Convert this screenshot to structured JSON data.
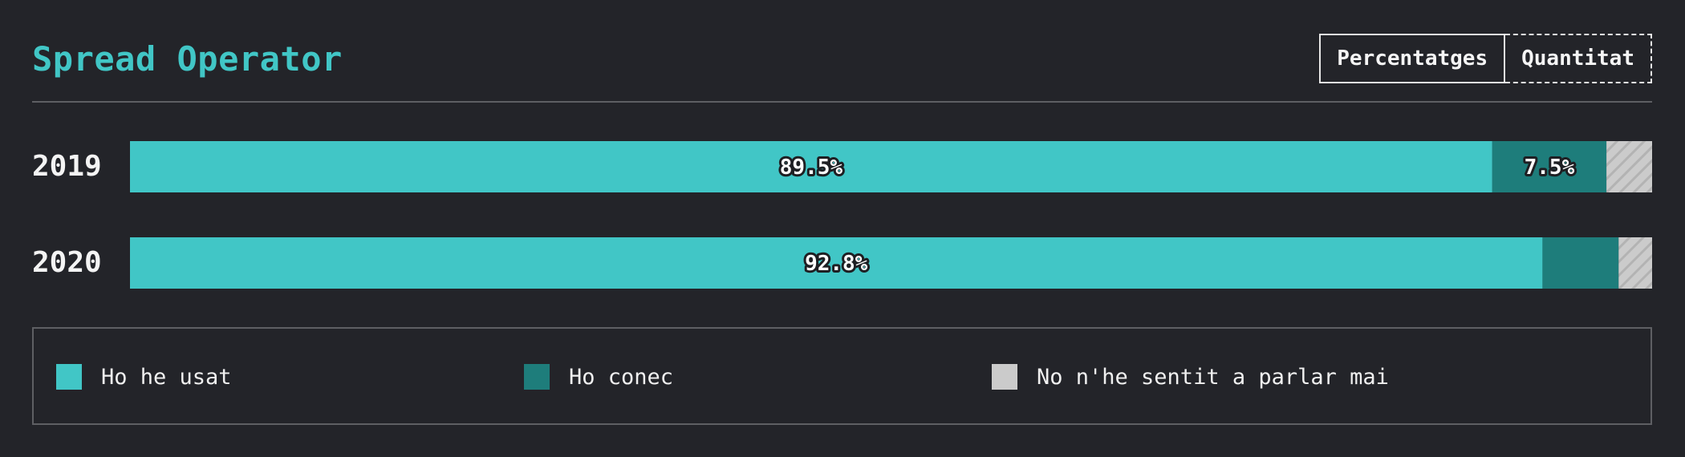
{
  "title": "Spread Operator",
  "toggle": {
    "percent_label": "Percentatges",
    "count_label": "Quantitat",
    "active": "percent"
  },
  "colors": {
    "background": "#232429",
    "accent": "#41c6c6",
    "used": "#41c6c6",
    "known": "#1e7d7b",
    "unknown": "#cbcbcb"
  },
  "chart_data": {
    "type": "bar",
    "orientation": "horizontal",
    "stacked": true,
    "normalized": true,
    "title": "Spread Operator",
    "categories": [
      "2019",
      "2020"
    ],
    "series": [
      {
        "name": "Ho he usat",
        "values": [
          89.5,
          92.8
        ],
        "color": "#41c6c6",
        "labels": [
          "89.5%",
          "92.8%"
        ]
      },
      {
        "name": "Ho conec",
        "values": [
          7.5,
          5.0
        ],
        "color": "#1e7d7b",
        "labels": [
          "7.5%",
          ""
        ]
      },
      {
        "name": "No n'he sentit a parlar mai",
        "values": [
          3.0,
          2.2
        ],
        "color": "#cbcbcb",
        "pattern": "hatched",
        "labels": [
          "",
          ""
        ]
      }
    ],
    "xlim": [
      0,
      100
    ],
    "legend_position": "bottom",
    "grid": false
  },
  "legend": {
    "items": [
      {
        "label": "Ho he usat",
        "color": "#41c6c6"
      },
      {
        "label": "Ho conec",
        "color": "#1e7d7b"
      },
      {
        "label": "No n'he sentit a parlar mai",
        "color": "#cbcbcb"
      }
    ]
  }
}
